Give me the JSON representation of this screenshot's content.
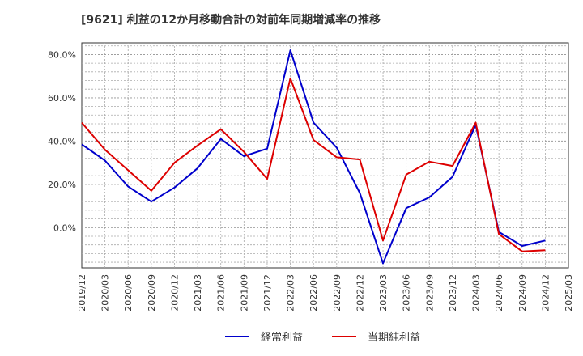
{
  "chart_data": {
    "type": "line",
    "title": "[9621]  利益の12か月移動合計の対前年同期増減率の推移",
    "x": [
      "2019/12",
      "2020/03",
      "2020/06",
      "2020/09",
      "2020/12",
      "2021/03",
      "2021/06",
      "2021/09",
      "2021/12",
      "2022/03",
      "2022/06",
      "2022/09",
      "2022/12",
      "2023/03",
      "2023/06",
      "2023/09",
      "2023/12",
      "2024/03",
      "2024/06",
      "2024/09",
      "2024/12",
      "2025/03"
    ],
    "y_ticks": [
      "0.0%",
      "20.0%",
      "40.0%",
      "60.0%",
      "80.0%"
    ],
    "y_tick_values": [
      0,
      20,
      40,
      60,
      80
    ],
    "ylim": [
      -18.6,
      85.4
    ],
    "series": [
      {
        "name": "経常利益",
        "color": "#0000cc",
        "values": [
          38.5,
          31,
          19,
          12,
          18.5,
          27.5,
          41,
          33,
          36.5,
          82,
          48.5,
          37,
          16,
          -16.5,
          9,
          14,
          23.5,
          47.5,
          -2,
          -8.5,
          -6,
          null
        ]
      },
      {
        "name": "当期純利益",
        "color": "#dd0000",
        "values": [
          48.5,
          36,
          26.5,
          17,
          30,
          38,
          45.5,
          35,
          22.5,
          69,
          40.5,
          32.5,
          31.5,
          -6,
          24.5,
          30.5,
          28.5,
          48.5,
          -3,
          -11,
          -10.5,
          null
        ]
      }
    ]
  }
}
